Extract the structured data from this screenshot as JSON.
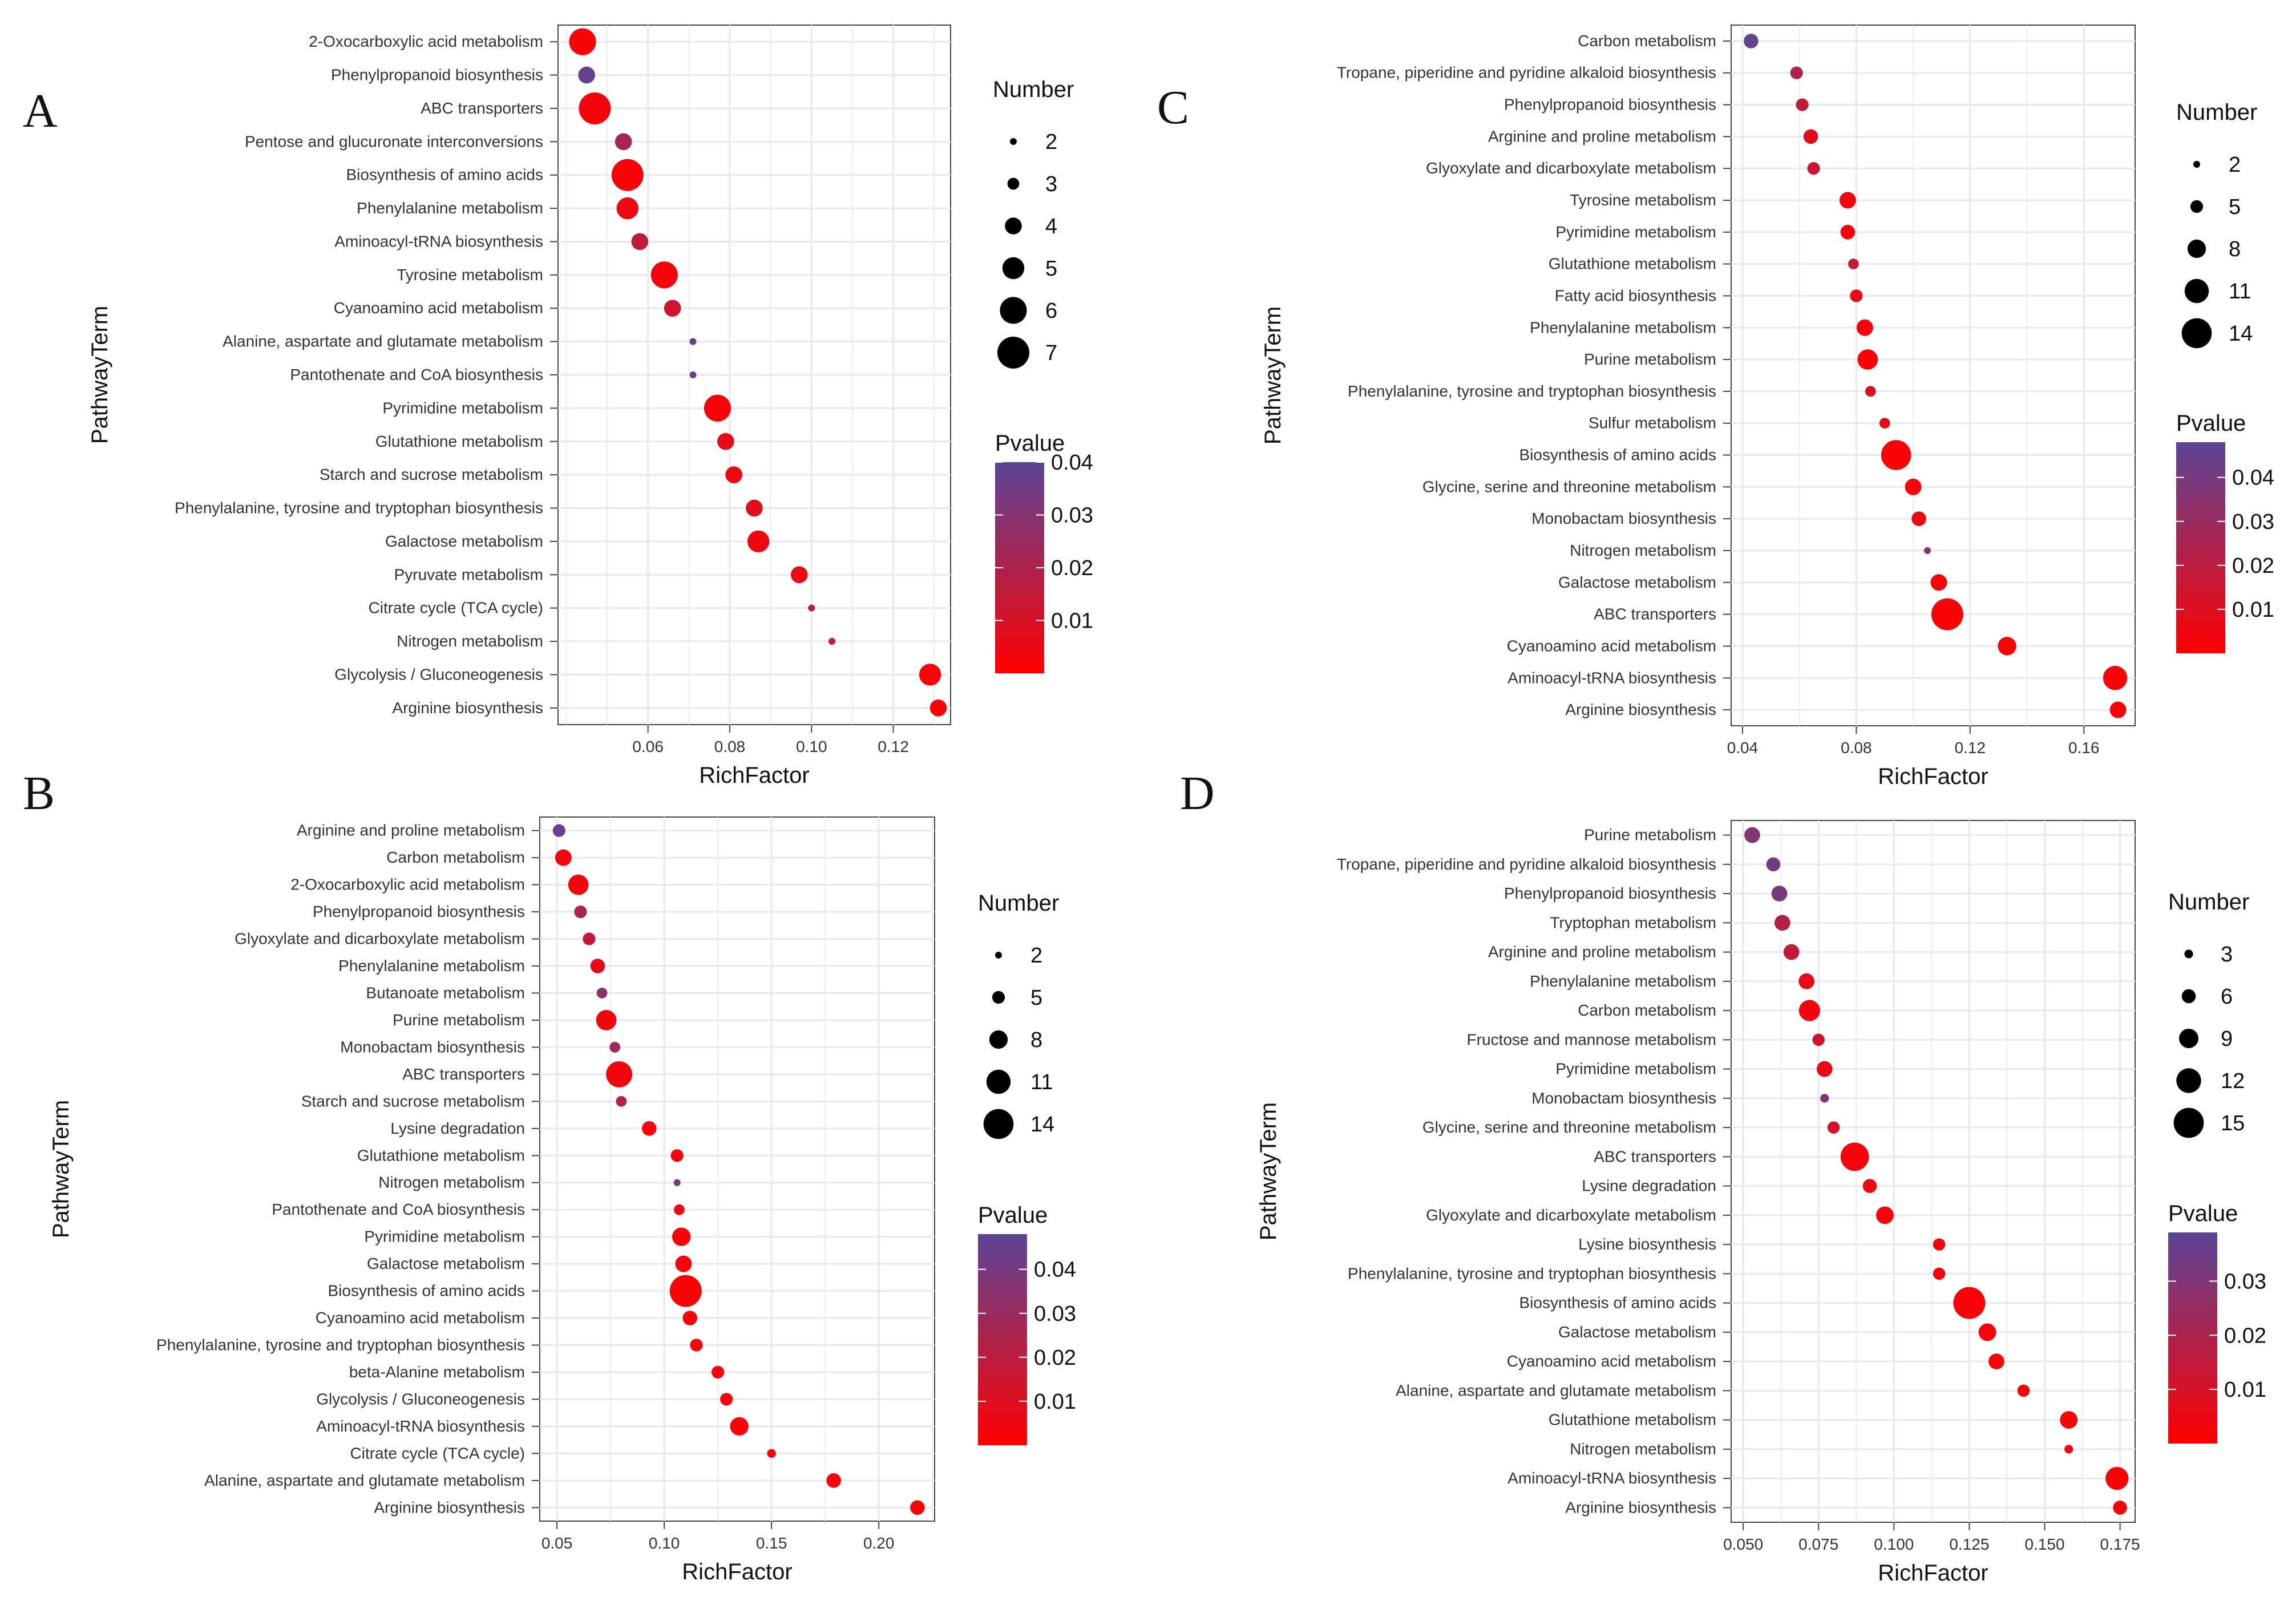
{
  "colors": {
    "low": "#ff0000",
    "high": "#5b4597",
    "grid": "#e9e9e9",
    "panel_bg": "#ffffff",
    "frame": "#444444"
  },
  "chart_data": [
    {
      "panel": "A",
      "type": "scatter",
      "xlabel": "RichFactor",
      "ylabel": "PathwayTerm",
      "xticks": [
        0.06,
        0.08,
        0.1,
        0.12
      ],
      "xtick_labels": [
        "0.06",
        "0.08",
        "0.10",
        "0.12"
      ],
      "xlim": [
        0.038,
        0.134
      ],
      "size_legend": {
        "title": "Number",
        "values": [
          2,
          3,
          4,
          5,
          6,
          7
        ],
        "range": [
          2,
          7
        ]
      },
      "color_legend": {
        "title": "Pvalue",
        "ticks": [
          0.01,
          0.02,
          0.03,
          0.04
        ],
        "tick_labels": [
          "0.01",
          "0.02",
          "0.03",
          "0.04"
        ],
        "range": [
          0.0,
          0.04
        ]
      },
      "points": [
        {
          "term": "2-Oxocarboxylic acid metabolism",
          "richfactor": 0.044,
          "number": 6,
          "pvalue": 0.002
        },
        {
          "term": "Phenylpropanoid biosynthesis",
          "richfactor": 0.045,
          "number": 4,
          "pvalue": 0.038
        },
        {
          "term": "ABC transporters",
          "richfactor": 0.047,
          "number": 7,
          "pvalue": 0.003
        },
        {
          "term": "Pentose and glucuronate interconversions",
          "richfactor": 0.054,
          "number": 4,
          "pvalue": 0.022
        },
        {
          "term": "Biosynthesis of amino acids",
          "richfactor": 0.055,
          "number": 7,
          "pvalue": 0.002
        },
        {
          "term": "Phenylalanine metabolism",
          "richfactor": 0.055,
          "number": 5,
          "pvalue": 0.004
        },
        {
          "term": "Aminoacyl-tRNA biosynthesis",
          "richfactor": 0.058,
          "number": 4,
          "pvalue": 0.016
        },
        {
          "term": "Tyrosine metabolism",
          "richfactor": 0.064,
          "number": 6,
          "pvalue": 0.003
        },
        {
          "term": "Cyanoamino acid metabolism",
          "richfactor": 0.066,
          "number": 4,
          "pvalue": 0.012
        },
        {
          "term": "Alanine, aspartate and glutamate metabolism",
          "richfactor": 0.071,
          "number": 2,
          "pvalue": 0.036
        },
        {
          "term": "Pantothenate and CoA biosynthesis",
          "richfactor": 0.071,
          "number": 2,
          "pvalue": 0.036
        },
        {
          "term": "Pyrimidine metabolism",
          "richfactor": 0.077,
          "number": 6,
          "pvalue": 0.002
        },
        {
          "term": "Glutathione metabolism",
          "richfactor": 0.079,
          "number": 4,
          "pvalue": 0.006
        },
        {
          "term": "Starch and sucrose metabolism",
          "richfactor": 0.081,
          "number": 4,
          "pvalue": 0.004
        },
        {
          "term": "Phenylalanine, tyrosine and tryptophan biosynthesis",
          "richfactor": 0.086,
          "number": 4,
          "pvalue": 0.007
        },
        {
          "term": "Galactose metabolism",
          "richfactor": 0.087,
          "number": 5,
          "pvalue": 0.004
        },
        {
          "term": "Pyruvate metabolism",
          "richfactor": 0.097,
          "number": 4,
          "pvalue": 0.005
        },
        {
          "term": "Citrate cycle (TCA cycle)",
          "richfactor": 0.1,
          "number": 2,
          "pvalue": 0.016
        },
        {
          "term": "Nitrogen metabolism",
          "richfactor": 0.105,
          "number": 2,
          "pvalue": 0.012
        },
        {
          "term": "Glycolysis / Gluconeogenesis",
          "richfactor": 0.129,
          "number": 5,
          "pvalue": 0.002
        },
        {
          "term": "Arginine biosynthesis",
          "richfactor": 0.131,
          "number": 4,
          "pvalue": 0.002
        }
      ]
    },
    {
      "panel": "B",
      "type": "scatter",
      "xlabel": "RichFactor",
      "ylabel": "PathwayTerm",
      "xticks": [
        0.05,
        0.1,
        0.15,
        0.2
      ],
      "xtick_labels": [
        "0.05",
        "0.10",
        "0.15",
        "0.20"
      ],
      "xlim": [
        0.042,
        0.226
      ],
      "size_legend": {
        "title": "Number",
        "values": [
          2,
          5,
          8,
          11,
          14
        ],
        "range": [
          2,
          15
        ]
      },
      "color_legend": {
        "title": "Pvalue",
        "ticks": [
          0.01,
          0.02,
          0.03,
          0.04
        ],
        "tick_labels": [
          "0.01",
          "0.02",
          "0.03",
          "0.04"
        ],
        "range": [
          0.0,
          0.048
        ]
      },
      "points": [
        {
          "term": "Arginine and proline metabolism",
          "richfactor": 0.051,
          "number": 5,
          "pvalue": 0.045
        },
        {
          "term": "Carbon metabolism",
          "richfactor": 0.053,
          "number": 7,
          "pvalue": 0.004
        },
        {
          "term": "2-Oxocarboxylic acid metabolism",
          "richfactor": 0.06,
          "number": 9,
          "pvalue": 0.003
        },
        {
          "term": "Phenylpropanoid biosynthesis",
          "richfactor": 0.061,
          "number": 5,
          "pvalue": 0.025
        },
        {
          "term": "Glyoxylate and dicarboxylate metabolism",
          "richfactor": 0.065,
          "number": 5,
          "pvalue": 0.018
        },
        {
          "term": "Phenylalanine metabolism",
          "richfactor": 0.069,
          "number": 6,
          "pvalue": 0.007
        },
        {
          "term": "Butanoate metabolism",
          "richfactor": 0.071,
          "number": 4,
          "pvalue": 0.035
        },
        {
          "term": "Purine metabolism",
          "richfactor": 0.073,
          "number": 9,
          "pvalue": 0.004
        },
        {
          "term": "Monobactam biosynthesis",
          "richfactor": 0.077,
          "number": 4,
          "pvalue": 0.028
        },
        {
          "term": "ABC transporters",
          "richfactor": 0.079,
          "number": 12,
          "pvalue": 0.004
        },
        {
          "term": "Starch and sucrose metabolism",
          "richfactor": 0.08,
          "number": 4,
          "pvalue": 0.022
        },
        {
          "term": "Lysine degradation",
          "richfactor": 0.093,
          "number": 6,
          "pvalue": 0.003
        },
        {
          "term": "Glutathione metabolism",
          "richfactor": 0.106,
          "number": 5,
          "pvalue": 0.003
        },
        {
          "term": "Nitrogen metabolism",
          "richfactor": 0.106,
          "number": 2,
          "pvalue": 0.038
        },
        {
          "term": "Pantothenate and CoA biosynthesis",
          "richfactor": 0.107,
          "number": 4,
          "pvalue": 0.006
        },
        {
          "term": "Pyrimidine metabolism",
          "richfactor": 0.108,
          "number": 8,
          "pvalue": 0.003
        },
        {
          "term": "Galactose metabolism",
          "richfactor": 0.109,
          "number": 7,
          "pvalue": 0.002
        },
        {
          "term": "Biosynthesis of amino acids",
          "richfactor": 0.11,
          "number": 15,
          "pvalue": 0.002
        },
        {
          "term": "Cyanoamino acid metabolism",
          "richfactor": 0.112,
          "number": 6,
          "pvalue": 0.002
        },
        {
          "term": "Phenylalanine, tyrosine and tryptophan biosynthesis",
          "richfactor": 0.115,
          "number": 5,
          "pvalue": 0.003
        },
        {
          "term": "beta-Alanine metabolism",
          "richfactor": 0.125,
          "number": 5,
          "pvalue": 0.003
        },
        {
          "term": "Glycolysis / Gluconeogenesis",
          "richfactor": 0.129,
          "number": 5,
          "pvalue": 0.002
        },
        {
          "term": "Aminoacyl-tRNA biosynthesis",
          "richfactor": 0.135,
          "number": 8,
          "pvalue": 0.002
        },
        {
          "term": "Citrate cycle (TCA cycle)",
          "richfactor": 0.15,
          "number": 3,
          "pvalue": 0.002
        },
        {
          "term": "Alanine, aspartate and glutamate metabolism",
          "richfactor": 0.179,
          "number": 6,
          "pvalue": 0.002
        },
        {
          "term": "Arginine biosynthesis",
          "richfactor": 0.218,
          "number": 6,
          "pvalue": 0.002
        }
      ]
    },
    {
      "panel": "C",
      "type": "scatter",
      "xlabel": "RichFactor",
      "ylabel": "PathwayTerm",
      "xticks": [
        0.04,
        0.08,
        0.12,
        0.16
      ],
      "xtick_labels": [
        "0.04",
        "0.08",
        "0.12",
        "0.16"
      ],
      "xlim": [
        0.036,
        0.178
      ],
      "size_legend": {
        "title": "Number",
        "values": [
          2,
          5,
          8,
          11,
          14
        ],
        "range": [
          2,
          15
        ]
      },
      "color_legend": {
        "title": "Pvalue",
        "ticks": [
          0.01,
          0.02,
          0.03,
          0.04
        ],
        "tick_labels": [
          "0.01",
          "0.02",
          "0.03",
          "0.04"
        ],
        "range": [
          0.0,
          0.048
        ]
      },
      "points": [
        {
          "term": "Carbon metabolism",
          "richfactor": 0.043,
          "number": 6,
          "pvalue": 0.046
        },
        {
          "term": "Tropane, piperidine and pyridine alkaloid biosynthesis",
          "richfactor": 0.059,
          "number": 5,
          "pvalue": 0.024
        },
        {
          "term": "Phenylpropanoid biosynthesis",
          "richfactor": 0.061,
          "number": 5,
          "pvalue": 0.018
        },
        {
          "term": "Arginine and proline metabolism",
          "richfactor": 0.064,
          "number": 6,
          "pvalue": 0.009
        },
        {
          "term": "Glyoxylate and dicarboxylate metabolism",
          "richfactor": 0.065,
          "number": 5,
          "pvalue": 0.016
        },
        {
          "term": "Tyrosine metabolism",
          "richfactor": 0.077,
          "number": 7,
          "pvalue": 0.003
        },
        {
          "term": "Pyrimidine metabolism",
          "richfactor": 0.077,
          "number": 6,
          "pvalue": 0.004
        },
        {
          "term": "Glutathione metabolism",
          "richfactor": 0.079,
          "number": 4,
          "pvalue": 0.018
        },
        {
          "term": "Fatty acid biosynthesis",
          "richfactor": 0.08,
          "number": 5,
          "pvalue": 0.006
        },
        {
          "term": "Phenylalanine metabolism",
          "richfactor": 0.083,
          "number": 7,
          "pvalue": 0.003
        },
        {
          "term": "Purine metabolism",
          "richfactor": 0.084,
          "number": 9,
          "pvalue": 0.002
        },
        {
          "term": "Phenylalanine, tyrosine and tryptophan biosynthesis",
          "richfactor": 0.085,
          "number": 4,
          "pvalue": 0.012
        },
        {
          "term": "Sulfur metabolism",
          "richfactor": 0.09,
          "number": 4,
          "pvalue": 0.008
        },
        {
          "term": "Biosynthesis of amino acids",
          "richfactor": 0.094,
          "number": 14,
          "pvalue": 0.002
        },
        {
          "term": "Glycine, serine and threonine metabolism",
          "richfactor": 0.1,
          "number": 7,
          "pvalue": 0.003
        },
        {
          "term": "Monobactam biosynthesis",
          "richfactor": 0.102,
          "number": 6,
          "pvalue": 0.004
        },
        {
          "term": "Nitrogen metabolism",
          "richfactor": 0.105,
          "number": 2,
          "pvalue": 0.036
        },
        {
          "term": "Galactose metabolism",
          "richfactor": 0.109,
          "number": 7,
          "pvalue": 0.002
        },
        {
          "term": "ABC transporters",
          "richfactor": 0.112,
          "number": 15,
          "pvalue": 0.002
        },
        {
          "term": "Cyanoamino acid metabolism",
          "richfactor": 0.133,
          "number": 8,
          "pvalue": 0.002
        },
        {
          "term": "Aminoacyl-tRNA biosynthesis",
          "richfactor": 0.171,
          "number": 11,
          "pvalue": 0.002
        },
        {
          "term": "Arginine biosynthesis",
          "richfactor": 0.172,
          "number": 7,
          "pvalue": 0.002
        }
      ]
    },
    {
      "panel": "D",
      "type": "scatter",
      "xlabel": "RichFactor",
      "ylabel": "PathwayTerm",
      "xticks": [
        0.05,
        0.075,
        0.1,
        0.125,
        0.15,
        0.175
      ],
      "xtick_labels": [
        "0.050",
        "0.075",
        "0.100",
        "0.125",
        "0.150",
        "0.175"
      ],
      "xlim": [
        0.046,
        0.18
      ],
      "size_legend": {
        "title": "Number",
        "values": [
          3,
          6,
          9,
          12,
          15
        ],
        "range": [
          2,
          16
        ]
      },
      "color_legend": {
        "title": "Pvalue",
        "ticks": [
          0.01,
          0.02,
          0.03
        ],
        "tick_labels": [
          "0.01",
          "0.02",
          "0.03"
        ],
        "range": [
          0.0,
          0.039
        ]
      },
      "points": [
        {
          "term": "Purine metabolism",
          "richfactor": 0.053,
          "number": 7,
          "pvalue": 0.03
        },
        {
          "term": "Tropane, piperidine and pyridine alkaloid biosynthesis",
          "richfactor": 0.06,
          "number": 6,
          "pvalue": 0.034
        },
        {
          "term": "Phenylpropanoid biosynthesis",
          "richfactor": 0.062,
          "number": 7,
          "pvalue": 0.032
        },
        {
          "term": "Tryptophan metabolism",
          "richfactor": 0.063,
          "number": 7,
          "pvalue": 0.018
        },
        {
          "term": "Arginine and proline metabolism",
          "richfactor": 0.066,
          "number": 7,
          "pvalue": 0.014
        },
        {
          "term": "Phenylalanine metabolism",
          "richfactor": 0.071,
          "number": 7,
          "pvalue": 0.006
        },
        {
          "term": "Carbon metabolism",
          "richfactor": 0.072,
          "number": 10,
          "pvalue": 0.003
        },
        {
          "term": "Fructose and mannose metabolism",
          "richfactor": 0.075,
          "number": 5,
          "pvalue": 0.012
        },
        {
          "term": "Pyrimidine metabolism",
          "richfactor": 0.077,
          "number": 7,
          "pvalue": 0.005
        },
        {
          "term": "Monobactam biosynthesis",
          "richfactor": 0.077,
          "number": 3,
          "pvalue": 0.03
        },
        {
          "term": "Glycine, serine and threonine metabolism",
          "richfactor": 0.08,
          "number": 5,
          "pvalue": 0.01
        },
        {
          "term": "ABC transporters",
          "richfactor": 0.087,
          "number": 14,
          "pvalue": 0.003
        },
        {
          "term": "Lysine degradation",
          "richfactor": 0.092,
          "number": 6,
          "pvalue": 0.004
        },
        {
          "term": "Glyoxylate and dicarboxylate metabolism",
          "richfactor": 0.097,
          "number": 8,
          "pvalue": 0.003
        },
        {
          "term": "Lysine biosynthesis",
          "richfactor": 0.115,
          "number": 5,
          "pvalue": 0.003
        },
        {
          "term": "Phenylalanine, tyrosine and tryptophan biosynthesis",
          "richfactor": 0.115,
          "number": 5,
          "pvalue": 0.003
        },
        {
          "term": "Biosynthesis of amino acids",
          "richfactor": 0.125,
          "number": 16,
          "pvalue": 0.002
        },
        {
          "term": "Galactose metabolism",
          "richfactor": 0.131,
          "number": 8,
          "pvalue": 0.002
        },
        {
          "term": "Cyanoamino acid metabolism",
          "richfactor": 0.134,
          "number": 7,
          "pvalue": 0.002
        },
        {
          "term": "Alanine, aspartate and glutamate metabolism",
          "richfactor": 0.143,
          "number": 5,
          "pvalue": 0.002
        },
        {
          "term": "Glutathione metabolism",
          "richfactor": 0.158,
          "number": 8,
          "pvalue": 0.002
        },
        {
          "term": "Nitrogen metabolism",
          "richfactor": 0.158,
          "number": 3,
          "pvalue": 0.004
        },
        {
          "term": "Aminoacyl-tRNA biosynthesis",
          "richfactor": 0.174,
          "number": 11,
          "pvalue": 0.002
        },
        {
          "term": "Arginine biosynthesis",
          "richfactor": 0.175,
          "number": 6,
          "pvalue": 0.002
        }
      ]
    }
  ]
}
